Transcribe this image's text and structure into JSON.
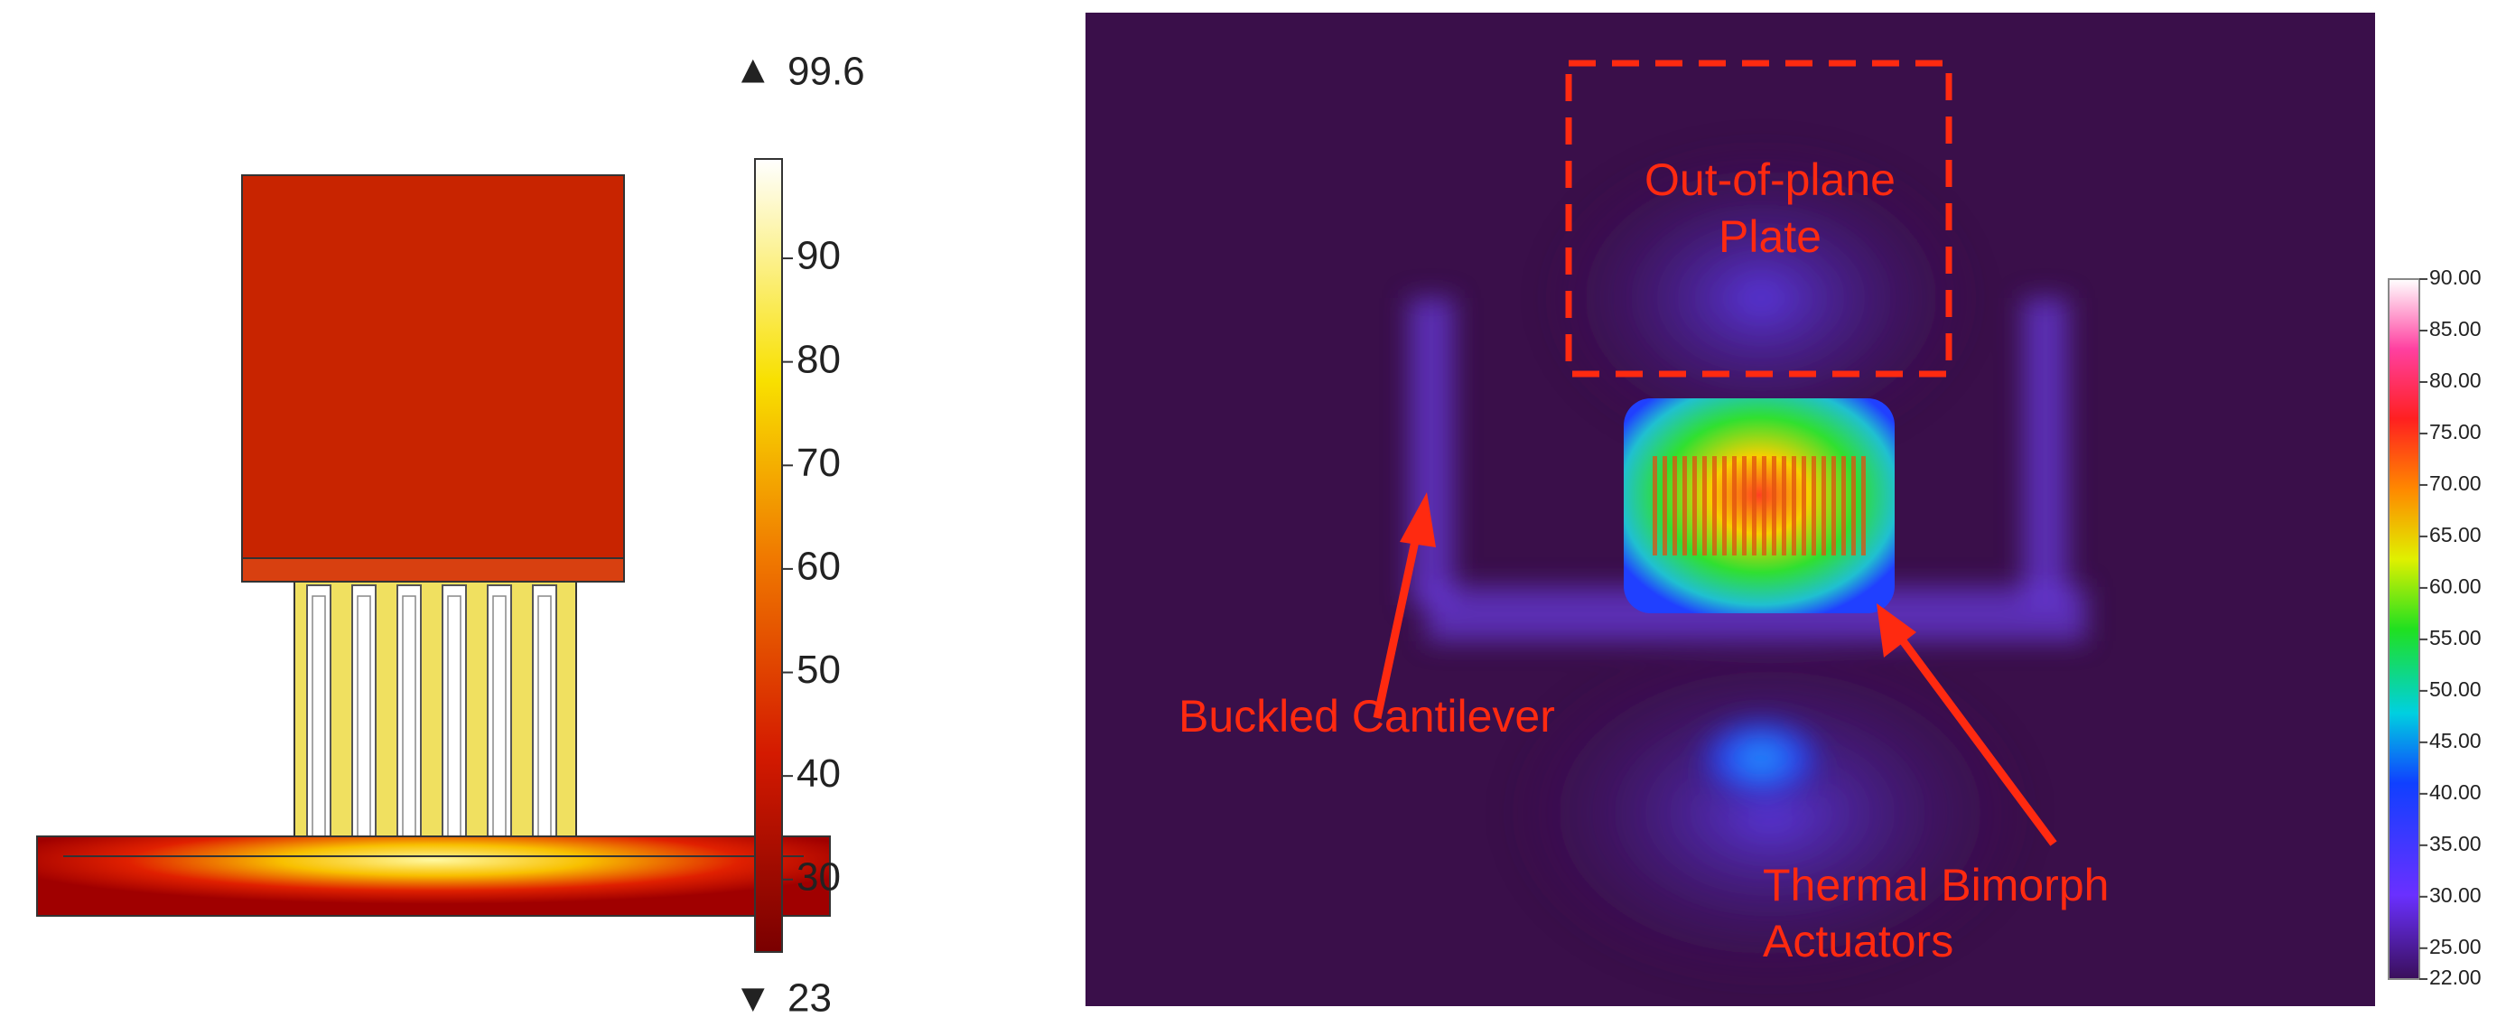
{
  "simulation": {
    "colorbar": {
      "max_label": "99.6",
      "min_label": "23",
      "range": [
        23,
        99.6
      ],
      "ticks": [
        30,
        40,
        50,
        60,
        70,
        80,
        90
      ]
    }
  },
  "thermal_image": {
    "annotations": {
      "plate": [
        "Out-of-plane",
        "Plate"
      ],
      "cantilever": "Buckled Cantilever",
      "actuators": [
        "Thermal Bimorph",
        "Actuators"
      ]
    },
    "colorbar": {
      "range": [
        22,
        90
      ],
      "ticks": [
        {
          "value": 22,
          "label": "22.00"
        },
        {
          "value": 25,
          "label": "25.00"
        },
        {
          "value": 30,
          "label": "30.00"
        },
        {
          "value": 35,
          "label": "35.00"
        },
        {
          "value": 40,
          "label": "40.00"
        },
        {
          "value": 45,
          "label": "45.00"
        },
        {
          "value": 50,
          "label": "50.00"
        },
        {
          "value": 55,
          "label": "55.00"
        },
        {
          "value": 60,
          "label": "60.00"
        },
        {
          "value": 65,
          "label": "65.00"
        },
        {
          "value": 70,
          "label": "70.00"
        },
        {
          "value": 75,
          "label": "75.00"
        },
        {
          "value": 80,
          "label": "80.00"
        },
        {
          "value": 85,
          "label": "85.00"
        },
        {
          "value": 90,
          "label": "90.00"
        }
      ]
    }
  }
}
